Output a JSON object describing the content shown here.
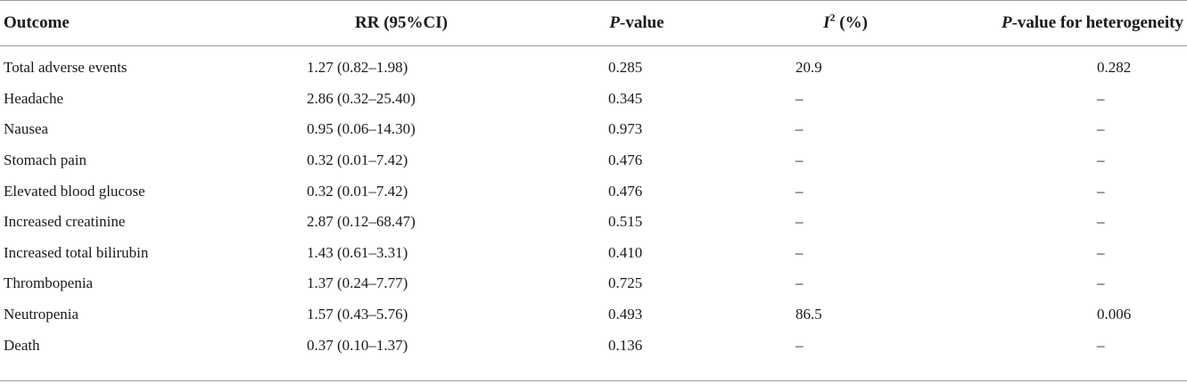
{
  "table": {
    "headers": {
      "outcome": "Outcome",
      "rr": "RR (95%CI)",
      "pvalue_italic": "P",
      "pvalue_rest": "-value",
      "i2_letter": "I",
      "i2_sup": "2",
      "i2_rest": " (%)",
      "phet_italic": "P",
      "phet_rest": "-value for heterogeneity"
    },
    "rows": [
      {
        "outcome": "Total adverse events",
        "rr": "1.27 (0.82–1.98)",
        "pvalue": "0.285",
        "i2": "20.9",
        "phet": "0.282"
      },
      {
        "outcome": "Headache",
        "rr": "2.86 (0.32–25.40)",
        "pvalue": "0.345",
        "i2": "–",
        "phet": "–"
      },
      {
        "outcome": "Nausea",
        "rr": "0.95 (0.06–14.30)",
        "pvalue": "0.973",
        "i2": "–",
        "phet": "–"
      },
      {
        "outcome": "Stomach pain",
        "rr": "0.32 (0.01–7.42)",
        "pvalue": "0.476",
        "i2": "–",
        "phet": "–"
      },
      {
        "outcome": "Elevated blood glucose",
        "rr": "0.32 (0.01–7.42)",
        "pvalue": "0.476",
        "i2": "–",
        "phet": "–"
      },
      {
        "outcome": "Increased creatinine",
        "rr": "2.87 (0.12–68.47)",
        "pvalue": "0.515",
        "i2": "–",
        "phet": "–"
      },
      {
        "outcome": "Increased total bilirubin",
        "rr": "1.43 (0.61–3.31)",
        "pvalue": "0.410",
        "i2": "–",
        "phet": "–"
      },
      {
        "outcome": "Thrombopenia",
        "rr": "1.37 (0.24–7.77)",
        "pvalue": "0.725",
        "i2": "–",
        "phet": "–"
      },
      {
        "outcome": "Neutropenia",
        "rr": "1.57 (0.43–5.76)",
        "pvalue": "0.493",
        "i2": "86.5",
        "phet": "0.006"
      },
      {
        "outcome": "Death",
        "rr": "0.37 (0.10–1.37)",
        "pvalue": "0.136",
        "i2": "–",
        "phet": "–"
      }
    ]
  }
}
